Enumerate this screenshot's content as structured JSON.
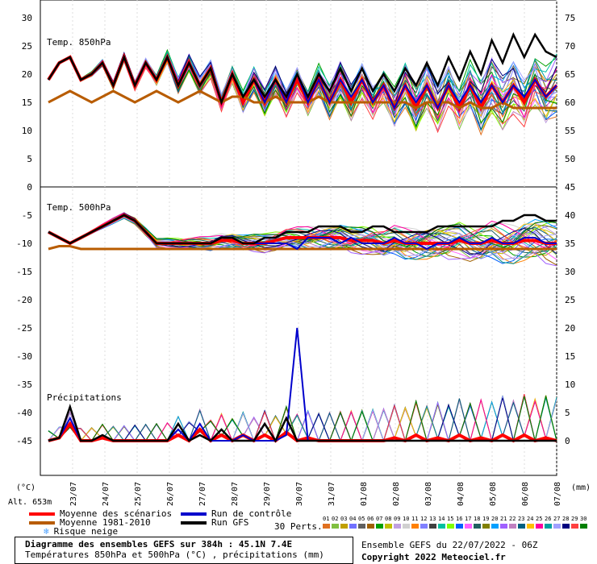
{
  "chart_data": {
    "type": "line",
    "title": "Diagramme des ensembles GEFS sur 384h : 45.1N 7.4E",
    "subtitle": "Températures 850hPa et 500hPa (°C) , précipitations (mm)",
    "panels": [
      {
        "label": "Temp. 850hPa",
        "unit": "°C",
        "ylim": [
          0,
          30
        ],
        "ticks_left": [
          "30",
          "25",
          "20",
          "15",
          "10",
          "5",
          "0"
        ],
        "ticks_right": [
          "75",
          "70",
          "65",
          "60",
          "55",
          "50",
          "45"
        ]
      },
      {
        "label": "Temp. 500hPa",
        "unit": "°C",
        "ylim": [
          -45,
          -5
        ],
        "ticks_left": [
          "-5",
          "-10",
          "-15",
          "-20",
          "-25",
          "-30",
          "-35",
          "-40",
          "-45"
        ],
        "ticks_right": [
          "40",
          "35",
          "30",
          "25",
          "20",
          "15",
          "10",
          "5",
          "0"
        ]
      },
      {
        "label": "Précipitations",
        "unit": "mm",
        "ylim": [
          0,
          40
        ]
      }
    ],
    "x_dates": [
      "23/07",
      "24/07",
      "25/07",
      "26/07",
      "27/07",
      "28/07",
      "29/07",
      "30/07",
      "31/07",
      "01/08",
      "02/08",
      "03/08",
      "04/08",
      "05/08",
      "06/08",
      "07/08"
    ],
    "left_unit": "(°C)",
    "right_unit": "(mm)",
    "altitude": "Alt. 653m",
    "series": [
      {
        "name": "Moyenne des scénarios",
        "color": "#ff0000",
        "t850": [
          19,
          22,
          23,
          19,
          20,
          22,
          18,
          23,
          18,
          22,
          19,
          23,
          18,
          22,
          18,
          21,
          15,
          20,
          15,
          19,
          15,
          19,
          15,
          19,
          15,
          19,
          15,
          19,
          15,
          19,
          15,
          18,
          14,
          18,
          14,
          18,
          14,
          18,
          14,
          18,
          14,
          18,
          15,
          18,
          15,
          19,
          16,
          18
        ],
        "t500": [
          -8,
          -9,
          -10,
          -9,
          -8,
          -7,
          -6,
          -5,
          -6,
          -8,
          -10,
          -10,
          -10,
          -10,
          -10,
          -10,
          -9.5,
          -9.5,
          -10,
          -10,
          -10,
          -9.5,
          -9,
          -9,
          -9,
          -9,
          -9,
          -9,
          -9.5,
          -9.5,
          -9.5,
          -10,
          -9.5,
          -10,
          -10,
          -10,
          -10,
          -10,
          -9.5,
          -10,
          -10,
          -9.5,
          -10,
          -10,
          -9.5,
          -9.5,
          -10,
          -10
        ],
        "precip": [
          0,
          0.5,
          3,
          0,
          0,
          0.5,
          0,
          0,
          0,
          0,
          0,
          0,
          1,
          0,
          2,
          0,
          1,
          0,
          1,
          0,
          1,
          0,
          1.5,
          0,
          0.5,
          0,
          0,
          0,
          0,
          0,
          0,
          0,
          0.5,
          0,
          1,
          0,
          0.5,
          0,
          1,
          0,
          0.5,
          0,
          1,
          0,
          1,
          0,
          0.5,
          0
        ]
      },
      {
        "name": "Moyenne 1981-2010",
        "color": "#b85c00",
        "t850": [
          15,
          16,
          17,
          16,
          15,
          16,
          17,
          16,
          15,
          16,
          17,
          16,
          15,
          16,
          17,
          16,
          15,
          16,
          16,
          15,
          15,
          16,
          15,
          15,
          15,
          16,
          15,
          15,
          15,
          15,
          15,
          15,
          15,
          15,
          14,
          15,
          15,
          15,
          14,
          15,
          14,
          14,
          15,
          14,
          14,
          14,
          14,
          14
        ],
        "t500": [
          -11,
          -10.5,
          -10.5,
          -11,
          -11,
          -11,
          -11,
          -11,
          -11,
          -11,
          -11,
          -11,
          -11,
          -11,
          -11,
          -11,
          -11,
          -11,
          -11,
          -11,
          -11,
          -11,
          -11,
          -11,
          -11,
          -11,
          -11,
          -11,
          -11,
          -11,
          -11,
          -11,
          -11,
          -11,
          -11,
          -11,
          -11,
          -11,
          -11,
          -11,
          -11,
          -11,
          -11,
          -11,
          -11,
          -11,
          -11,
          -11
        ]
      },
      {
        "name": "Run de contrôle",
        "color": "#0000cc",
        "t850": [
          19,
          22,
          23,
          19,
          20,
          22,
          18,
          23,
          18,
          22,
          19,
          23,
          18,
          22,
          18,
          21,
          15,
          20,
          16,
          19,
          15,
          19,
          15,
          20,
          15,
          19,
          15,
          19,
          16,
          19,
          15,
          18,
          14,
          18,
          15,
          18,
          14,
          18,
          15,
          18,
          15,
          18,
          15,
          18,
          16,
          19,
          16,
          18
        ],
        "t500": [
          -8,
          -9,
          -10,
          -9,
          -8,
          -7,
          -6,
          -5,
          -6,
          -8,
          -10,
          -10,
          -10,
          -10,
          -10,
          -10,
          -9,
          -9,
          -10,
          -10,
          -10,
          -10,
          -10,
          -11,
          -9,
          -9,
          -9,
          -10,
          -9,
          -10,
          -10,
          -10,
          -9,
          -10,
          -10,
          -11,
          -10,
          -10,
          -9,
          -10,
          -10,
          -9,
          -10,
          -10,
          -9,
          -9,
          -10,
          -10
        ],
        "precip": [
          0,
          0.5,
          4,
          0,
          0,
          1,
          0,
          0,
          0,
          0,
          0,
          0,
          2,
          0,
          3,
          0,
          0,
          0,
          1,
          0,
          0,
          0,
          1,
          20,
          0,
          0,
          0,
          0,
          0,
          0,
          0,
          0,
          0,
          0,
          0,
          0,
          0,
          0,
          0,
          0,
          0,
          0,
          0,
          0,
          0,
          0,
          0,
          0
        ]
      },
      {
        "name": "Run GFS",
        "color": "#000000",
        "t850": [
          19,
          22,
          23,
          19,
          20,
          22,
          18,
          23,
          18,
          22,
          19,
          23,
          18,
          22,
          18,
          21,
          15,
          20,
          16,
          19,
          16,
          19,
          16,
          20,
          16,
          20,
          17,
          21,
          17,
          21,
          17,
          20,
          17,
          21,
          18,
          22,
          18,
          23,
          19,
          24,
          20,
          26,
          22,
          27,
          23,
          27,
          24,
          23
        ],
        "t500": [
          -8,
          -9,
          -10,
          -9,
          -8,
          -7,
          -6,
          -5,
          -6,
          -8,
          -10,
          -10,
          -10,
          -10,
          -10,
          -10,
          -9,
          -9,
          -10,
          -10,
          -9,
          -9,
          -8,
          -8,
          -8,
          -7,
          -7,
          -7,
          -8,
          -8,
          -7,
          -7,
          -8,
          -8,
          -8,
          -8,
          -7,
          -7,
          -7,
          -7,
          -7,
          -7,
          -6,
          -6,
          -5,
          -5,
          -6,
          -6
        ],
        "precip": [
          0,
          0.5,
          6,
          0,
          0,
          1,
          0,
          0,
          0,
          0,
          0,
          0,
          3,
          0,
          1,
          0,
          2,
          0,
          0,
          0,
          3,
          0,
          4,
          0,
          0,
          0,
          0,
          0,
          0,
          0,
          0,
          0,
          0,
          0,
          0,
          0,
          0,
          0,
          0,
          0,
          0,
          0,
          0,
          0,
          0,
          0,
          0,
          0
        ]
      }
    ],
    "ensemble_count": "30 Perts.",
    "ensemble_numbers": [
      "01",
      "02",
      "03",
      "04",
      "05",
      "06",
      "07",
      "08",
      "09",
      "10",
      "11",
      "12",
      "13",
      "14",
      "15",
      "16",
      "17",
      "18",
      "19",
      "20",
      "21",
      "22",
      "23",
      "24",
      "25",
      "26",
      "27",
      "28",
      "29",
      "30"
    ],
    "ensemble_colors": [
      "#e07020",
      "#80c040",
      "#c0a000",
      "#7070ff",
      "#606060",
      "#a06000",
      "#00a000",
      "#c0c000",
      "#c0a0e0",
      "#d0d0d0",
      "#ff8000",
      "#8080ff",
      "#404040",
      "#00c0a0",
      "#80ff00",
      "#0060ff",
      "#ff60ff",
      "#206060",
      "#808000",
      "#00a0ff",
      "#a060ff",
      "#c080c0",
      "#006080",
      "#ffc000",
      "#ff00a0",
      "#00a0a0",
      "#a0a0ff",
      "#000080",
      "#ff4040",
      "#008000"
    ],
    "legend_labels": {
      "moyenne": "Moyenne des scénarios",
      "climat": "Moyenne 1981-2010",
      "neige": "Risque neige",
      "controle": "Run de contrôle",
      "gfs": "Run GFS"
    },
    "title_line1": "Diagramme des ensembles GEFS sur 384h : 45.1N 7.4E",
    "title_line2": "Températures 850hPa et 500hPa (°C) , précipitations (mm)",
    "run_info": "Ensemble GEFS du 22/07/2022 - 06Z",
    "copyright": "Copyright 2022 Meteociel.fr"
  }
}
